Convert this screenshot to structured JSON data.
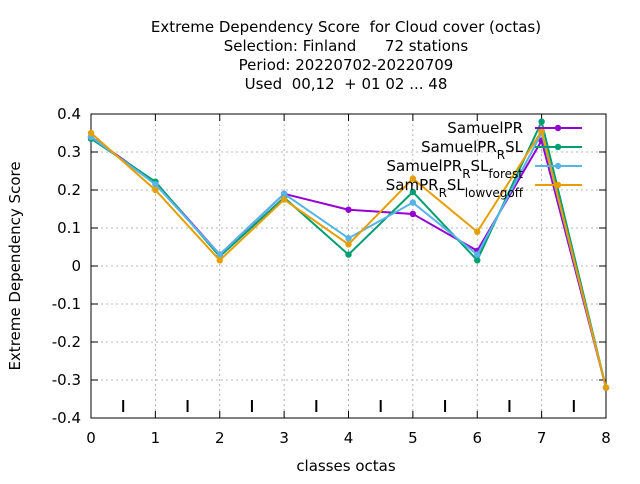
{
  "chart_data": {
    "type": "line",
    "title_lines": [
      "Extreme Dependency Score  for Cloud cover (octas)",
      "Selection: Finland      72 stations",
      "Period: 20220702-20220709",
      "Used  00,12  + 01 02 ... 48"
    ],
    "xlabel": "classes octas",
    "ylabel": "Extreme Dependency Score",
    "xlim": [
      0,
      8
    ],
    "ylim": [
      -0.4,
      0.4
    ],
    "x_ticks": [
      "0",
      "1",
      "2",
      "3",
      "4",
      "5",
      "6",
      "7",
      "8"
    ],
    "y_ticks": [
      "-0.4",
      "-0.3",
      "-0.2",
      "-0.1",
      "0",
      "0.1",
      "0.2",
      "0.3",
      "0.4"
    ],
    "grid": true,
    "legend_position": "top-right",
    "x": [
      0,
      1,
      2,
      3,
      4,
      5,
      6,
      7,
      8
    ],
    "series": [
      {
        "name": "SamuelPR",
        "legend_parts": [
          [
            "SamuelPR",
            "n"
          ]
        ],
        "color": "#9400d3",
        "values": [
          0.34,
          0.22,
          0.03,
          0.19,
          0.148,
          0.137,
          0.04,
          0.33,
          -0.32
        ]
      },
      {
        "name": "SamuelPR_RSL",
        "legend_parts": [
          [
            "SamuelPR",
            "n"
          ],
          [
            "R",
            "sub"
          ],
          [
            "SL",
            "n"
          ]
        ],
        "color": "#009e73",
        "values": [
          0.335,
          0.222,
          0.025,
          0.18,
          0.03,
          0.195,
          0.015,
          0.38,
          -0.32
        ]
      },
      {
        "name": "SamuelPR_RSL_forest",
        "legend_parts": [
          [
            "SamuelPR",
            "n"
          ],
          [
            "R",
            "sub"
          ],
          [
            "SL",
            "n"
          ],
          [
            "forest",
            "sub"
          ]
        ],
        "color": "#56b4e9",
        "values": [
          0.34,
          0.215,
          0.03,
          0.19,
          0.073,
          0.167,
          0.03,
          0.35,
          -0.32
        ]
      },
      {
        "name": "SamPR_RSL_lowvegoff",
        "legend_parts": [
          [
            "SamPR",
            "n"
          ],
          [
            "R",
            "sub"
          ],
          [
            "SL",
            "n"
          ],
          [
            "lowvegoff",
            "sub"
          ]
        ],
        "color": "#e69f00",
        "values": [
          0.35,
          0.2,
          0.015,
          0.175,
          0.057,
          0.23,
          0.09,
          0.355,
          -0.32
        ]
      }
    ]
  }
}
